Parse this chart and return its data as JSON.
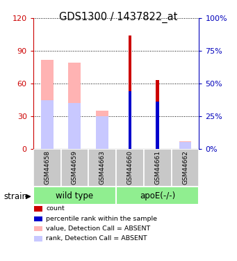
{
  "title": "GDS1300 / 1437822_at",
  "categories": [
    "GSM44658",
    "GSM44659",
    "GSM44663",
    "GSM44660",
    "GSM44661",
    "GSM44662"
  ],
  "ylim_left": [
    0,
    120
  ],
  "ylim_right": [
    0,
    100
  ],
  "yticks_left": [
    0,
    30,
    60,
    90,
    120
  ],
  "yticks_right": [
    0,
    25,
    50,
    75,
    100
  ],
  "ytick_labels_left": [
    "0",
    "30",
    "60",
    "90",
    "120"
  ],
  "ytick_labels_right": [
    "0%",
    "25%",
    "50%",
    "75%",
    "100%"
  ],
  "value_absent_heights": [
    82,
    79,
    35,
    0,
    0,
    7
  ],
  "rank_absent_heights": [
    37,
    35,
    25,
    0,
    0,
    5
  ],
  "count_heights": [
    0,
    0,
    0,
    104,
    63,
    0
  ],
  "rank_heights": [
    0,
    0,
    0,
    44,
    36,
    0
  ],
  "value_absent_color": "#FFB3B3",
  "rank_absent_color": "#C8C8FF",
  "count_color": "#CC0000",
  "rank_color": "#0000CC",
  "left_axis_color": "#CC0000",
  "right_axis_color": "#0000BB",
  "legend_items": [
    {
      "label": "count",
      "color": "#CC0000"
    },
    {
      "label": "percentile rank within the sample",
      "color": "#0000CC"
    },
    {
      "label": "value, Detection Call = ABSENT",
      "color": "#FFB3B3"
    },
    {
      "label": "rank, Detection Call = ABSENT",
      "color": "#C8C8FF"
    }
  ],
  "group_label_1": "wild type",
  "group_label_2": "apoE(-/-)",
  "group_color": "#90EE90",
  "gray_box_color": "#C8C8C8",
  "strain_label": "strain",
  "wide_bar_width": 0.45,
  "narrow_bar_width": 0.12
}
